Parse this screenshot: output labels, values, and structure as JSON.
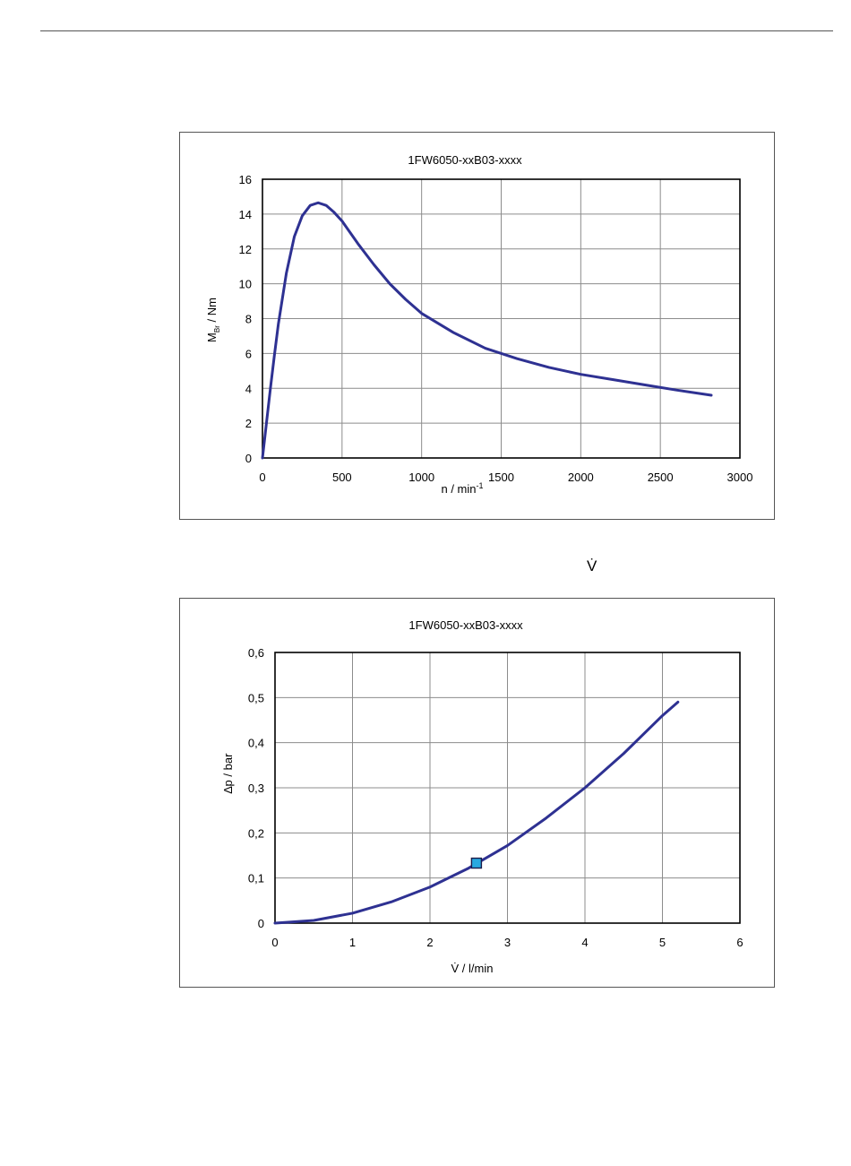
{
  "between_label": "V̇",
  "chart_data": [
    {
      "type": "line",
      "title": "1FW6050-xxB03-xxxx",
      "xlabel": "n / min",
      "xlabel_sup": "-1",
      "ylabel_main": "M",
      "ylabel_sub": "Br",
      "ylabel_rest": " / Nm",
      "xlim": [
        0,
        3000
      ],
      "ylim": [
        0,
        16
      ],
      "xticks": [
        0,
        500,
        1000,
        1500,
        2000,
        2500,
        3000
      ],
      "xtick_labels": [
        "0",
        "500",
        "1000",
        "1500",
        "2000",
        "2500",
        "3000"
      ],
      "yticks": [
        0,
        2,
        4,
        6,
        8,
        10,
        12,
        14,
        16
      ],
      "ytick_labels": [
        "0",
        "2",
        "4",
        "6",
        "8",
        "10",
        "12",
        "14",
        "16"
      ],
      "grid": true,
      "line_color": "#2e3192",
      "series": [
        {
          "x": [
            0,
            25,
            50,
            75,
            100,
            150,
            200,
            250,
            300,
            350,
            400,
            450,
            500,
            600,
            700,
            800,
            900,
            1000,
            1200,
            1400,
            1600,
            1800,
            2000,
            2200,
            2400,
            2600,
            2820
          ],
          "values": [
            0,
            2.0,
            4.0,
            5.9,
            7.7,
            10.6,
            12.7,
            13.9,
            14.5,
            14.65,
            14.5,
            14.1,
            13.6,
            12.3,
            11.1,
            10.0,
            9.1,
            8.3,
            7.2,
            6.3,
            5.7,
            5.2,
            4.8,
            4.5,
            4.2,
            3.9,
            3.6
          ]
        }
      ]
    },
    {
      "type": "line",
      "title": "1FW6050-xxB03-xxxx",
      "xlabel": "V̇ / l/min",
      "ylabel": "∆p / bar",
      "xlim": [
        0,
        6
      ],
      "ylim": [
        0,
        0.6
      ],
      "xticks": [
        0,
        1,
        2,
        3,
        4,
        5,
        6
      ],
      "xtick_labels": [
        "0",
        "1",
        "2",
        "3",
        "4",
        "5",
        "6"
      ],
      "yticks": [
        0,
        0.1,
        0.2,
        0.3,
        0.4,
        0.5,
        0.6
      ],
      "ytick_labels": [
        "0",
        "0,1",
        "0,2",
        "0,3",
        "0,4",
        "0,5",
        "0,6"
      ],
      "grid": true,
      "line_color": "#2e3192",
      "marker_color": "#29a9e0",
      "series": [
        {
          "x": [
            0,
            0.5,
            1,
            1.5,
            2,
            2.5,
            3,
            3.5,
            4,
            4.5,
            5,
            5.2
          ],
          "values": [
            0,
            0.006,
            0.022,
            0.047,
            0.08,
            0.122,
            0.172,
            0.233,
            0.3,
            0.376,
            0.46,
            0.49
          ]
        }
      ],
      "marker": {
        "x": 2.6,
        "y": 0.133
      }
    }
  ]
}
